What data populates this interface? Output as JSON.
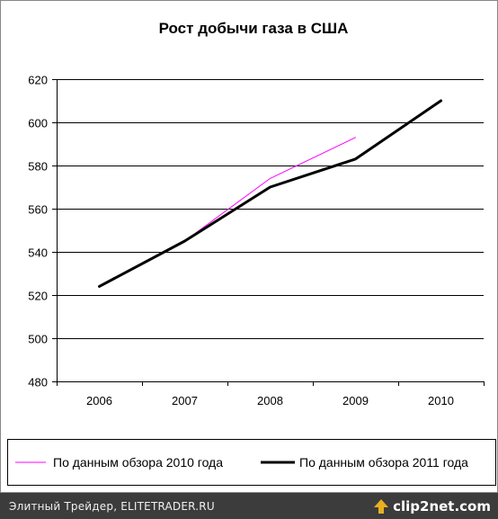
{
  "chart_data": {
    "type": "line",
    "title": "Рост добычи газа в США",
    "xlabel": "",
    "ylabel": "",
    "categories": [
      "2006",
      "2007",
      "2008",
      "2009",
      "2010"
    ],
    "ylim": [
      480,
      620
    ],
    "yticks": [
      480,
      500,
      520,
      540,
      560,
      580,
      600,
      620
    ],
    "grid": true,
    "legend_position": "bottom",
    "series": [
      {
        "name": "По данным обзора 2010 года",
        "color": "#ff00ff",
        "values": [
          524,
          545,
          574,
          593,
          null
        ]
      },
      {
        "name": "По данным обзора 2011 года",
        "color": "#000000",
        "values": [
          524,
          545,
          570,
          583,
          610
        ]
      }
    ]
  },
  "footer": {
    "text": "Элитный Трейдер, ELITETRADER.RU",
    "brand": "clip2net.com",
    "brand_icon": "upload-arrow-icon",
    "brand_icon_color": "#e8b020"
  }
}
